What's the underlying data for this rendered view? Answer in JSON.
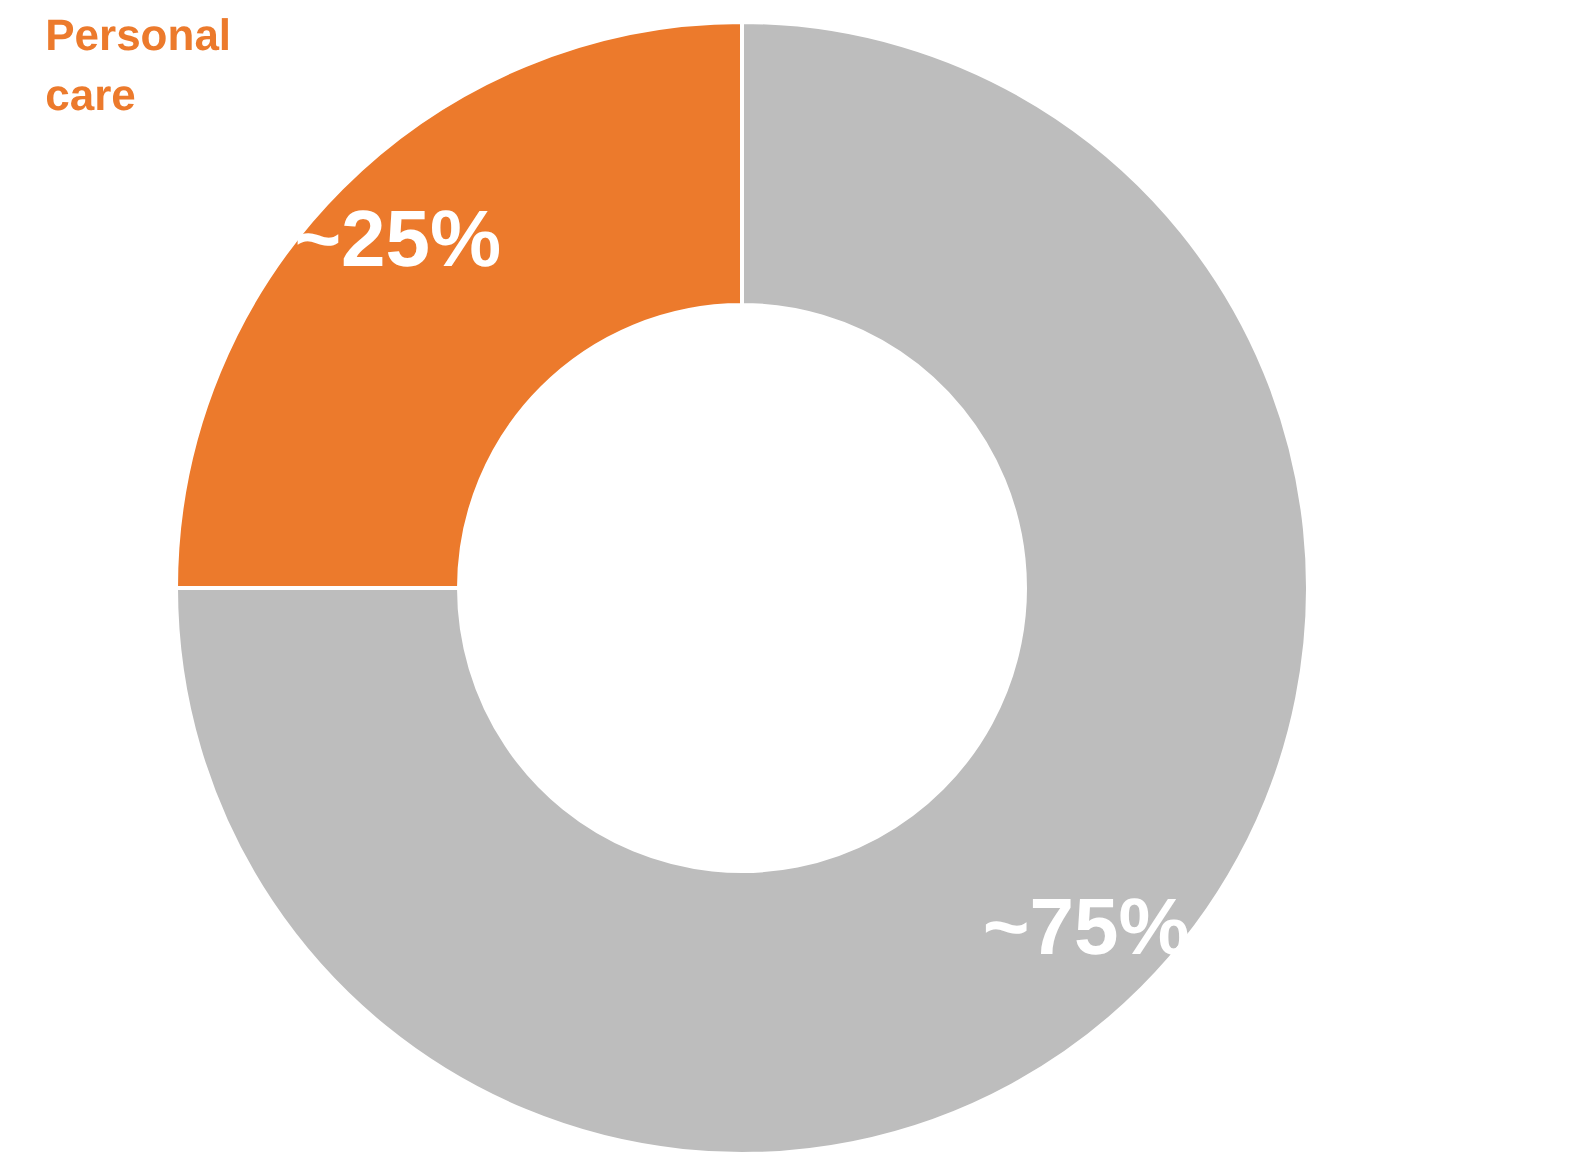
{
  "chart_data": {
    "type": "donut",
    "categories": [
      "Personal care",
      null
    ],
    "values": [
      25,
      75
    ],
    "colors": [
      "#ec7a2c",
      "#bdbdbd"
    ],
    "value_labels": [
      "~25%",
      "~75%"
    ],
    "legend": false
  }
}
